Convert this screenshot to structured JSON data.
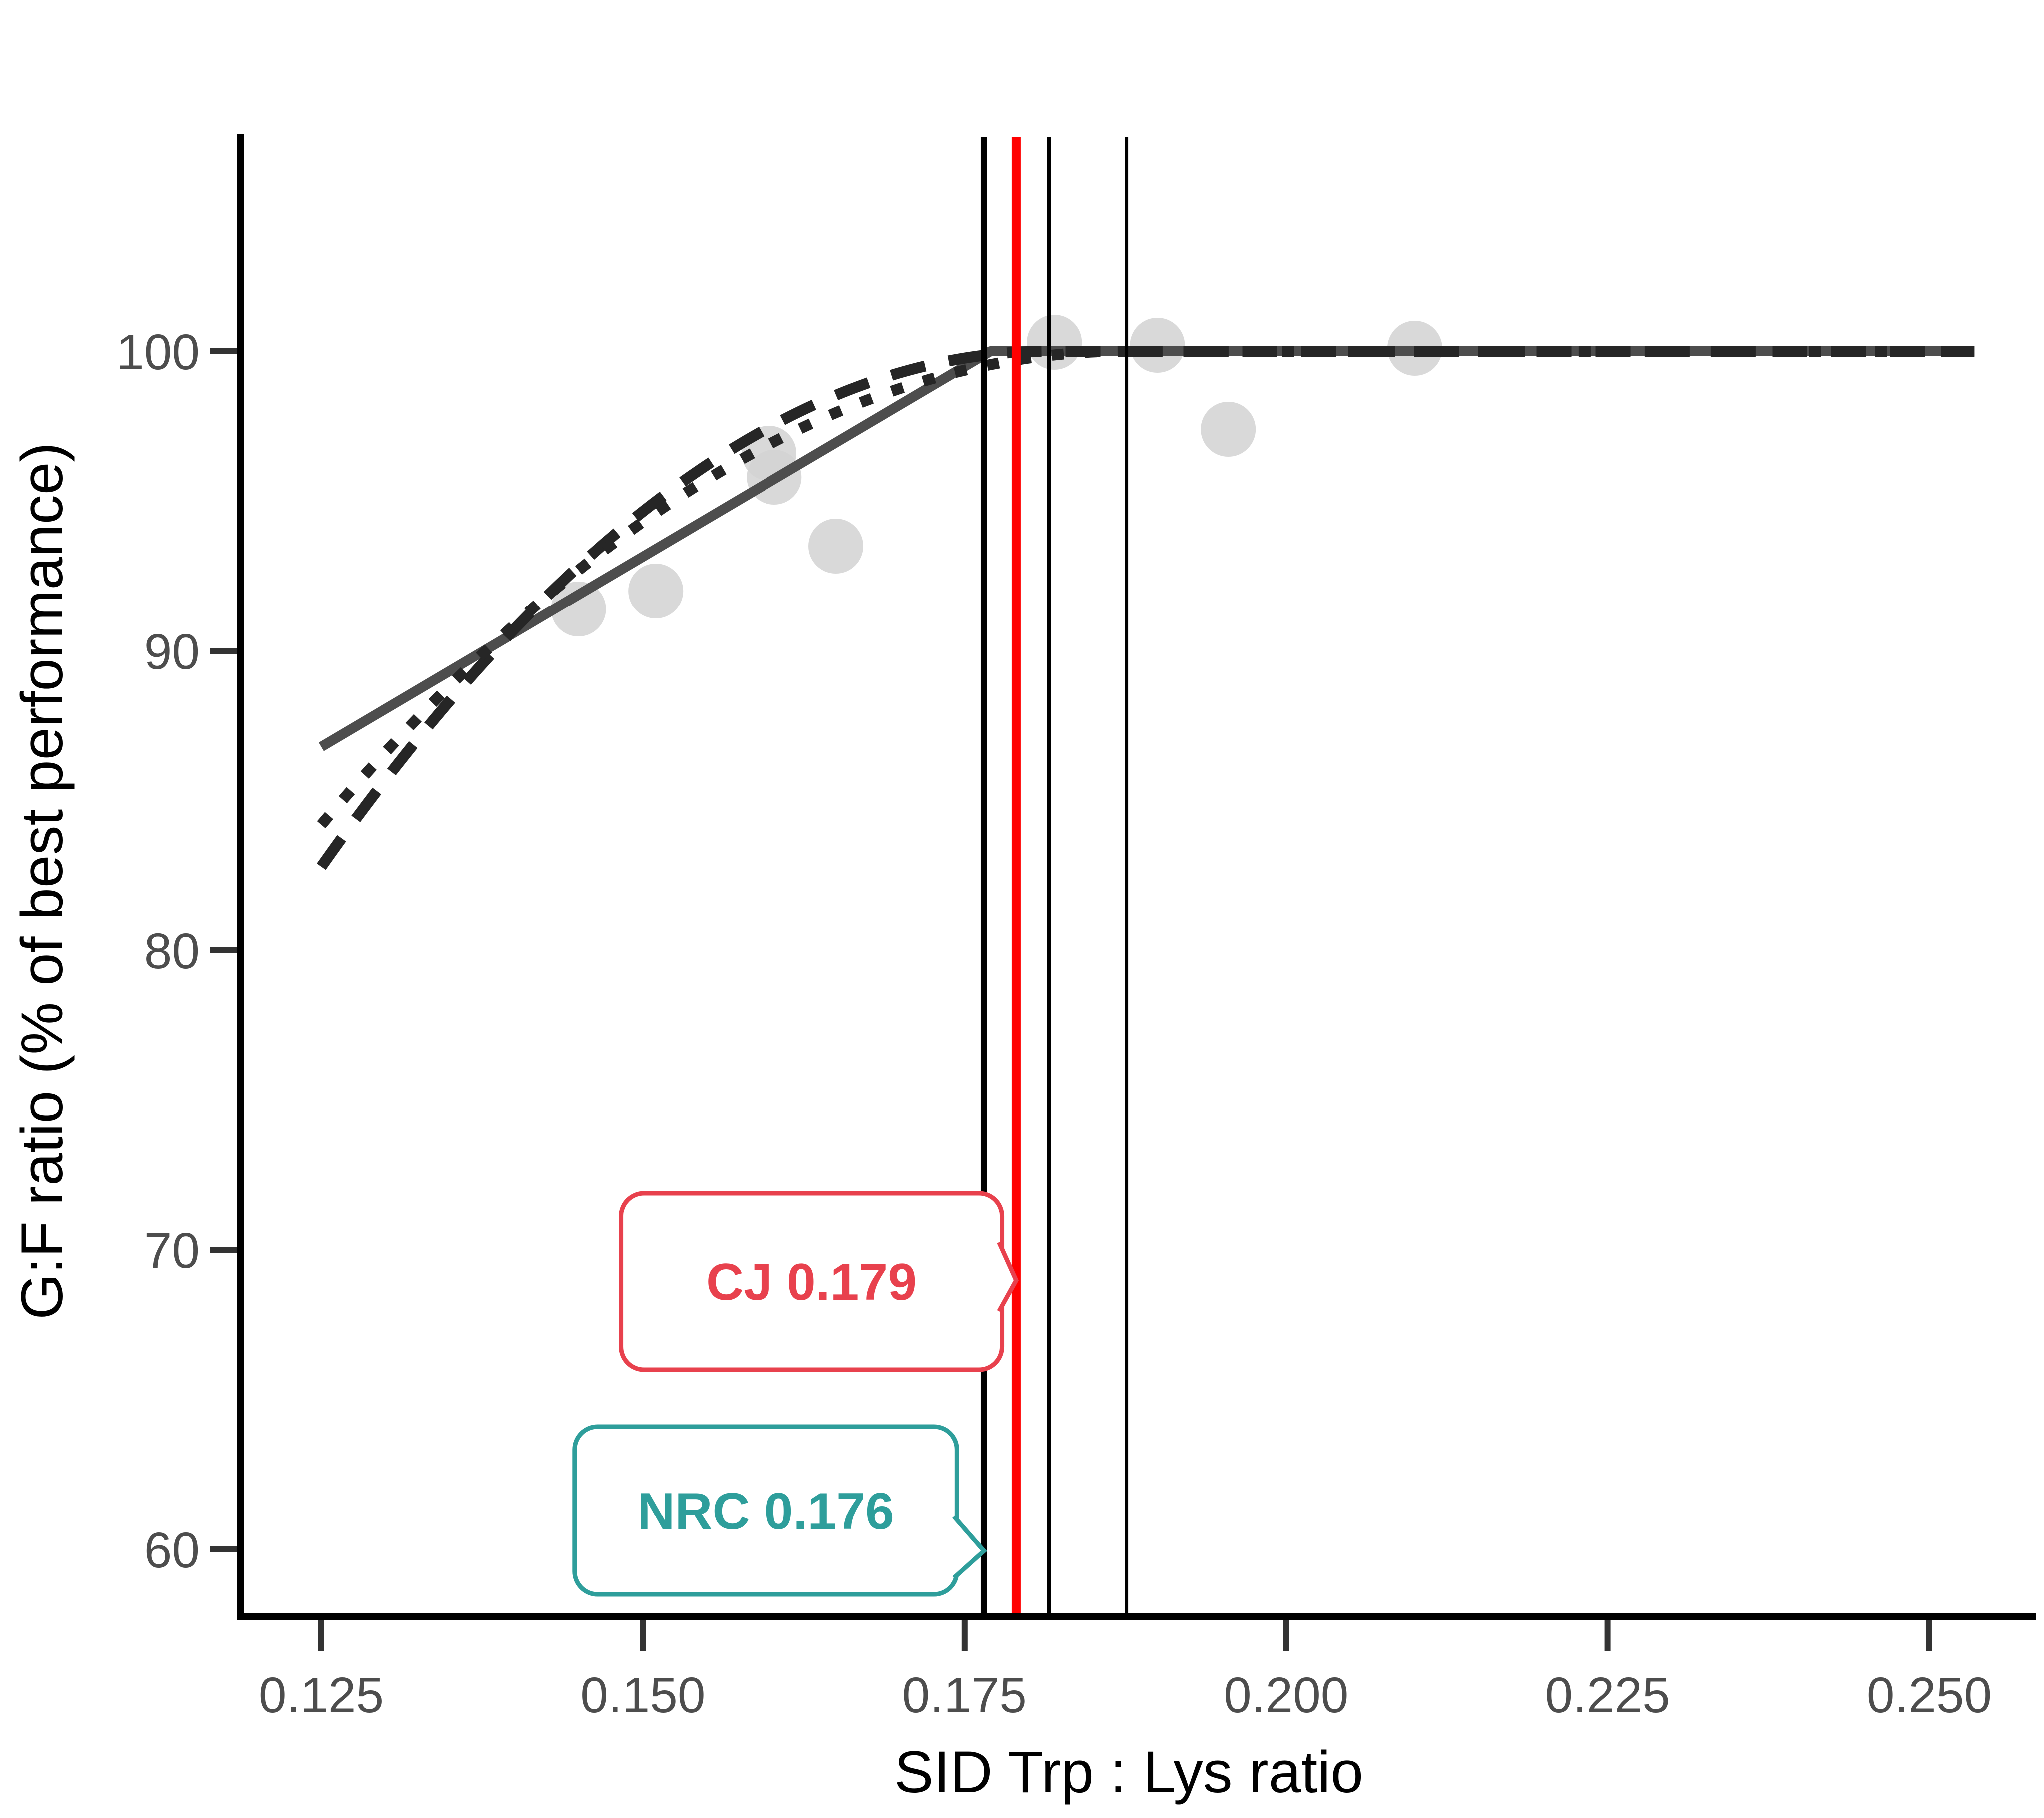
{
  "chart_data": {
    "type": "scatter",
    "xlabel": "SID Trp : Lys ratio",
    "ylabel": "G:F ratio (% of best performance)",
    "xlim": [
      0.1187,
      0.2563
    ],
    "ylim": [
      58.8,
      107.2
    ],
    "grid": "off",
    "x_ticks": [
      0.125,
      0.15,
      0.175,
      0.2,
      0.225,
      0.25
    ],
    "x_tick_labels": [
      "0.125",
      "0.150",
      "0.175",
      "0.200",
      "0.225",
      "0.250"
    ],
    "y_ticks": [
      100,
      90,
      80,
      70,
      60
    ],
    "y_tick_labels": [
      "100",
      "90",
      "80",
      "70",
      "60"
    ],
    "points": {
      "color": "#d2d2d2",
      "opacity": 0.85,
      "xy": [
        [
          0.145,
          91.4
        ],
        [
          0.151,
          92.0
        ],
        [
          0.1598,
          96.6
        ],
        [
          0.1602,
          95.8
        ],
        [
          0.165,
          93.5
        ],
        [
          0.182,
          100.3
        ],
        [
          0.19,
          100.2
        ],
        [
          0.1955,
          97.4
        ],
        [
          0.21,
          100.1
        ]
      ]
    },
    "models": [
      {
        "name": "broken-line-linear",
        "style": "solid",
        "color": "#4d4d4d",
        "width": 20,
        "start": [
          0.125,
          86.8
        ],
        "breakpoint": [
          0.177,
          100
        ],
        "end": [
          0.2535,
          100
        ],
        "curve": "linear"
      },
      {
        "name": "curvilinear-plateau-1",
        "style": "dashed",
        "color": "#262626",
        "width": 22,
        "start": [
          0.125,
          82.8
        ],
        "breakpoint": [
          0.1815,
          100
        ],
        "end": [
          0.2535,
          100
        ],
        "curve": "quadratic"
      },
      {
        "name": "curvilinear-plateau-2",
        "style": "dotted",
        "color": "#262626",
        "width": 22,
        "start": [
          0.125,
          84.2
        ],
        "breakpoint": [
          0.1875,
          100
        ],
        "end": [
          0.2535,
          100
        ],
        "curve": "quadratic"
      }
    ],
    "plateau_value": 100,
    "vlines": [
      {
        "name": "nrc-line",
        "x": 0.1765,
        "color": "#000000",
        "width": 13
      },
      {
        "name": "cj-line",
        "x": 0.179,
        "color": "#ff0000",
        "width": 18
      },
      {
        "name": "breakpoint-line-1",
        "x": 0.1816,
        "color": "#000000",
        "width": 8
      },
      {
        "name": "breakpoint-line-2",
        "x": 0.1876,
        "color": "#000000",
        "width": 7
      }
    ],
    "annotations": [
      {
        "name": "cj-callout",
        "label": "CJ 0.179",
        "color": "#e8414d",
        "box_x": [
          0.1483,
          0.1779
        ],
        "box_y": [
          66.0,
          71.9
        ],
        "tip": [
          0.179,
          68.98
        ],
        "notch_y": [
          67.95,
          70.25
        ]
      },
      {
        "name": "nrc-callout",
        "label": "NRC 0.176",
        "color": "#2e9e9b",
        "box_x": [
          0.1447,
          0.1744
        ],
        "box_y": [
          58.5,
          64.1
        ],
        "tip": [
          0.1765,
          59.95
        ],
        "notch_y": [
          59.05,
          61.1
        ]
      }
    ]
  }
}
